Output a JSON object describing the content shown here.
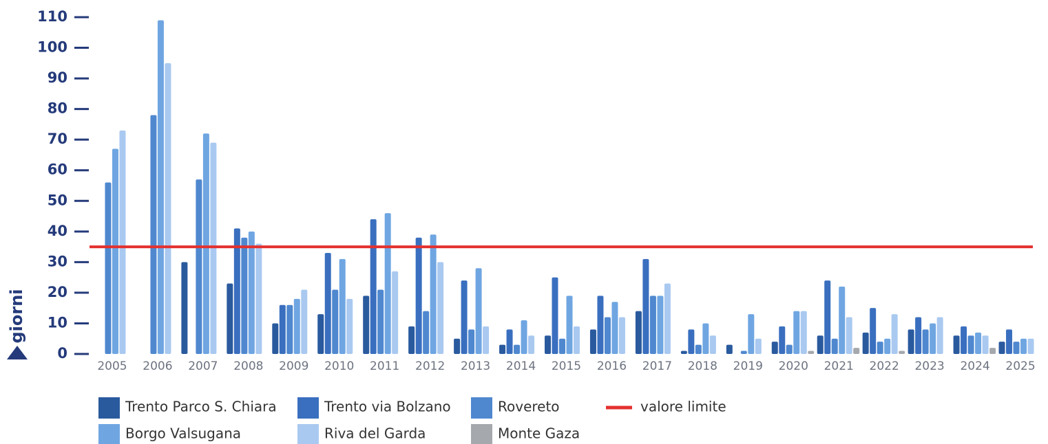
{
  "chart_data": {
    "type": "bar",
    "y_label": "giorni",
    "categories": [
      "2005",
      "2006",
      "2007",
      "2008",
      "2009",
      "2010",
      "2011",
      "2012",
      "2013",
      "2014",
      "2015",
      "2016",
      "2017",
      "2018",
      "2019",
      "2020",
      "2021",
      "2022",
      "2023",
      "2024",
      "2025"
    ],
    "series": [
      {
        "name": "Trento Parco S. Chiara",
        "color": "#2a5a9e",
        "values": [
          null,
          null,
          30,
          23,
          10,
          13,
          19,
          9,
          5,
          3,
          6,
          8,
          14,
          1,
          3,
          4,
          6,
          7,
          8,
          6,
          4
        ]
      },
      {
        "name": "Trento via Bolzano",
        "color": "#3a6fbf",
        "values": [
          null,
          null,
          null,
          41,
          16,
          33,
          44,
          38,
          24,
          8,
          25,
          19,
          31,
          8,
          null,
          9,
          24,
          15,
          12,
          9,
          8
        ]
      },
      {
        "name": "Rovereto",
        "color": "#4f88cf",
        "values": [
          56,
          78,
          57,
          38,
          16,
          21,
          21,
          14,
          8,
          3,
          5,
          12,
          19,
          3,
          1,
          3,
          5,
          4,
          8,
          6,
          4
        ]
      },
      {
        "name": "Borgo Valsugana",
        "color": "#6fa6e2",
        "values": [
          67,
          109,
          72,
          40,
          18,
          31,
          46,
          39,
          28,
          11,
          19,
          17,
          19,
          10,
          13,
          14,
          22,
          5,
          10,
          7,
          5
        ]
      },
      {
        "name": "Riva del Garda",
        "color": "#a9c9f0",
        "values": [
          73,
          95,
          69,
          36,
          21,
          18,
          27,
          30,
          9,
          6,
          9,
          12,
          23,
          6,
          5,
          14,
          12,
          13,
          12,
          6,
          5
        ]
      },
      {
        "name": "Monte Gaza",
        "color": "#a5a8ac",
        "values": [
          null,
          null,
          null,
          null,
          null,
          null,
          null,
          null,
          null,
          null,
          null,
          null,
          null,
          null,
          null,
          1,
          2,
          1,
          null,
          2,
          null
        ]
      }
    ],
    "reference_line": {
      "name": "valore limite",
      "value": 35,
      "color": "#e3312f"
    },
    "ylim": [
      0,
      110
    ],
    "yticks": [
      0,
      10,
      20,
      30,
      40,
      50,
      60,
      70,
      80,
      90,
      100,
      110
    ]
  }
}
